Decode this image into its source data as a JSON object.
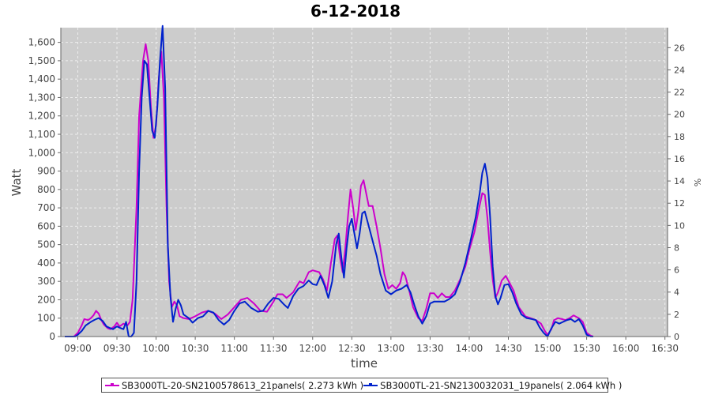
{
  "chart_data": {
    "type": "line",
    "title": "6-12-2018",
    "xlabel": "time",
    "ylabel": "Watt",
    "ylabel_right": "%",
    "grid": true,
    "legend_position": "bottom",
    "x_unit": "clock time (HH:MM)",
    "xlim": [
      "08:47",
      "16:32"
    ],
    "ylim": [
      0,
      1680
    ],
    "ylim_right": [
      0,
      27.8
    ],
    "x_ticks": [
      "09:00",
      "09:30",
      "10:00",
      "10:30",
      "11:00",
      "11:30",
      "12:00",
      "12:30",
      "13:00",
      "13:30",
      "14:00",
      "14:30",
      "15:00",
      "15:30",
      "16:00",
      "16:30"
    ],
    "y_ticks": [
      "0",
      "100",
      "200",
      "300",
      "400",
      "500",
      "600",
      "700",
      "800",
      "900",
      "1,000",
      "1,100",
      "1,200",
      "1,300",
      "1,400",
      "1,500",
      "1,600"
    ],
    "y_ticks_right": [
      "0",
      "2",
      "4",
      "6",
      "8",
      "10",
      "12",
      "14",
      "16",
      "18",
      "20",
      "22",
      "24",
      "26"
    ],
    "colors": {
      "plot_background": "#cccccc",
      "grid": "#eeeeee"
    },
    "series": [
      {
        "name": "SB3000TL-20-SN2100578613_21panels( 2.273 kWh )",
        "color": "#cc00cc",
        "points": [
          [
            "08:50",
            0
          ],
          [
            "08:57",
            0
          ],
          [
            "09:00",
            20
          ],
          [
            "09:03",
            60
          ],
          [
            "09:05",
            95
          ],
          [
            "09:08",
            90
          ],
          [
            "09:10",
            100
          ],
          [
            "09:12",
            115
          ],
          [
            "09:14",
            140
          ],
          [
            "09:16",
            125
          ],
          [
            "09:18",
            90
          ],
          [
            "09:20",
            65
          ],
          [
            "09:23",
            45
          ],
          [
            "09:25",
            40
          ],
          [
            "09:28",
            55
          ],
          [
            "09:30",
            75
          ],
          [
            "09:32",
            55
          ],
          [
            "09:35",
            70
          ],
          [
            "09:38",
            60
          ],
          [
            "09:40",
            80
          ],
          [
            "09:42",
            200
          ],
          [
            "09:45",
            700
          ],
          [
            "09:47",
            1200
          ],
          [
            "09:50",
            1500
          ],
          [
            "09:52",
            1590
          ],
          [
            "09:54",
            1500
          ],
          [
            "09:56",
            1250
          ],
          [
            "09:58",
            1080
          ],
          [
            "10:00",
            1150
          ],
          [
            "10:02",
            1400
          ],
          [
            "10:04",
            1550
          ],
          [
            "10:06",
            1300
          ],
          [
            "10:08",
            700
          ],
          [
            "10:10",
            300
          ],
          [
            "10:12",
            160
          ],
          [
            "10:14",
            190
          ],
          [
            "10:16",
            170
          ],
          [
            "10:18",
            110
          ],
          [
            "10:21",
            100
          ],
          [
            "10:25",
            95
          ],
          [
            "10:30",
            110
          ],
          [
            "10:35",
            130
          ],
          [
            "10:40",
            140
          ],
          [
            "10:45",
            125
          ],
          [
            "10:50",
            95
          ],
          [
            "10:55",
            120
          ],
          [
            "11:00",
            160
          ],
          [
            "11:05",
            200
          ],
          [
            "11:10",
            210
          ],
          [
            "11:15",
            180
          ],
          [
            "11:20",
            140
          ],
          [
            "11:25",
            135
          ],
          [
            "11:30",
            190
          ],
          [
            "11:33",
            230
          ],
          [
            "11:37",
            230
          ],
          [
            "11:40",
            210
          ],
          [
            "11:45",
            240
          ],
          [
            "11:50",
            300
          ],
          [
            "11:53",
            290
          ],
          [
            "11:57",
            350
          ],
          [
            "12:00",
            360
          ],
          [
            "12:05",
            350
          ],
          [
            "12:08",
            310
          ],
          [
            "12:11",
            250
          ],
          [
            "12:14",
            400
          ],
          [
            "12:17",
            530
          ],
          [
            "12:19",
            550
          ],
          [
            "12:21",
            430
          ],
          [
            "12:23",
            350
          ],
          [
            "12:25",
            480
          ],
          [
            "12:27",
            650
          ],
          [
            "12:29",
            800
          ],
          [
            "12:31",
            700
          ],
          [
            "12:33",
            580
          ],
          [
            "12:35",
            680
          ],
          [
            "12:37",
            820
          ],
          [
            "12:39",
            850
          ],
          [
            "12:41",
            780
          ],
          [
            "12:43",
            710
          ],
          [
            "12:46",
            710
          ],
          [
            "12:49",
            600
          ],
          [
            "12:52",
            480
          ],
          [
            "12:55",
            340
          ],
          [
            "12:58",
            260
          ],
          [
            "13:01",
            280
          ],
          [
            "13:04",
            260
          ],
          [
            "13:07",
            290
          ],
          [
            "13:09",
            350
          ],
          [
            "13:11",
            330
          ],
          [
            "13:14",
            250
          ],
          [
            "13:17",
            160
          ],
          [
            "13:21",
            100
          ],
          [
            "13:24",
            85
          ],
          [
            "13:27",
            150
          ],
          [
            "13:30",
            235
          ],
          [
            "13:33",
            235
          ],
          [
            "13:36",
            210
          ],
          [
            "13:39",
            235
          ],
          [
            "13:42",
            215
          ],
          [
            "13:45",
            215
          ],
          [
            "13:49",
            250
          ],
          [
            "13:53",
            310
          ],
          [
            "13:57",
            380
          ],
          [
            "14:00",
            470
          ],
          [
            "14:04",
            570
          ],
          [
            "14:07",
            680
          ],
          [
            "14:10",
            780
          ],
          [
            "14:12",
            770
          ],
          [
            "14:14",
            640
          ],
          [
            "14:16",
            460
          ],
          [
            "14:18",
            310
          ],
          [
            "14:20",
            210
          ],
          [
            "14:22",
            240
          ],
          [
            "14:25",
            305
          ],
          [
            "14:28",
            330
          ],
          [
            "14:31",
            290
          ],
          [
            "14:34",
            250
          ],
          [
            "14:38",
            160
          ],
          [
            "14:43",
            110
          ],
          [
            "14:47",
            100
          ],
          [
            "14:51",
            90
          ],
          [
            "14:55",
            70
          ],
          [
            "14:58",
            30
          ],
          [
            "15:00",
            10
          ],
          [
            "15:03",
            40
          ],
          [
            "15:05",
            90
          ],
          [
            "15:08",
            100
          ],
          [
            "15:11",
            95
          ],
          [
            "15:14",
            90
          ],
          [
            "15:17",
            100
          ],
          [
            "15:20",
            115
          ],
          [
            "15:24",
            100
          ],
          [
            "15:27",
            80
          ],
          [
            "15:30",
            20
          ],
          [
            "15:33",
            5
          ],
          [
            "15:35",
            0
          ]
        ]
      },
      {
        "name": "SB3000TL-21-SN2130032031_19panels( 2.064 kWh )",
        "color": "#0022cc",
        "points": [
          [
            "08:50",
            0
          ],
          [
            "08:58",
            0
          ],
          [
            "09:00",
            10
          ],
          [
            "09:03",
            30
          ],
          [
            "09:06",
            60
          ],
          [
            "09:10",
            80
          ],
          [
            "09:14",
            95
          ],
          [
            "09:16",
            100
          ],
          [
            "09:19",
            85
          ],
          [
            "09:22",
            55
          ],
          [
            "09:25",
            45
          ],
          [
            "09:27",
            40
          ],
          [
            "09:30",
            55
          ],
          [
            "09:33",
            45
          ],
          [
            "09:35",
            40
          ],
          [
            "09:37",
            80
          ],
          [
            "09:39",
            0
          ],
          [
            "09:41",
            0
          ],
          [
            "09:43",
            20
          ],
          [
            "09:45",
            300
          ],
          [
            "09:47",
            900
          ],
          [
            "09:49",
            1300
          ],
          [
            "09:51",
            1500
          ],
          [
            "09:53",
            1480
          ],
          [
            "09:55",
            1300
          ],
          [
            "09:57",
            1120
          ],
          [
            "09:59",
            1080
          ],
          [
            "10:01",
            1250
          ],
          [
            "10:03",
            1500
          ],
          [
            "10:05",
            1690
          ],
          [
            "10:07",
            1350
          ],
          [
            "10:09",
            500
          ],
          [
            "10:11",
            220
          ],
          [
            "10:13",
            80
          ],
          [
            "10:15",
            150
          ],
          [
            "10:17",
            200
          ],
          [
            "10:19",
            170
          ],
          [
            "10:21",
            120
          ],
          [
            "10:25",
            100
          ],
          [
            "10:28",
            75
          ],
          [
            "10:32",
            100
          ],
          [
            "10:36",
            110
          ],
          [
            "10:40",
            140
          ],
          [
            "10:44",
            130
          ],
          [
            "10:48",
            90
          ],
          [
            "10:52",
            65
          ],
          [
            "10:56",
            90
          ],
          [
            "11:00",
            140
          ],
          [
            "11:04",
            180
          ],
          [
            "11:08",
            190
          ],
          [
            "11:13",
            155
          ],
          [
            "11:18",
            135
          ],
          [
            "11:22",
            140
          ],
          [
            "11:26",
            180
          ],
          [
            "11:30",
            210
          ],
          [
            "11:34",
            205
          ],
          [
            "11:38",
            175
          ],
          [
            "11:41",
            155
          ],
          [
            "11:45",
            220
          ],
          [
            "11:49",
            260
          ],
          [
            "11:53",
            275
          ],
          [
            "11:57",
            305
          ],
          [
            "12:00",
            285
          ],
          [
            "12:03",
            280
          ],
          [
            "12:06",
            330
          ],
          [
            "12:09",
            280
          ],
          [
            "12:12",
            210
          ],
          [
            "12:15",
            300
          ],
          [
            "12:18",
            500
          ],
          [
            "12:20",
            560
          ],
          [
            "12:22",
            430
          ],
          [
            "12:24",
            320
          ],
          [
            "12:26",
            480
          ],
          [
            "12:28",
            600
          ],
          [
            "12:30",
            640
          ],
          [
            "12:32",
            560
          ],
          [
            "12:34",
            480
          ],
          [
            "12:36",
            560
          ],
          [
            "12:38",
            670
          ],
          [
            "12:40",
            680
          ],
          [
            "12:43",
            600
          ],
          [
            "12:46",
            520
          ],
          [
            "12:49",
            440
          ],
          [
            "12:52",
            340
          ],
          [
            "12:56",
            250
          ],
          [
            "13:00",
            230
          ],
          [
            "13:04",
            250
          ],
          [
            "13:08",
            260
          ],
          [
            "13:12",
            280
          ],
          [
            "13:15",
            240
          ],
          [
            "13:18",
            170
          ],
          [
            "13:21",
            110
          ],
          [
            "13:24",
            70
          ],
          [
            "13:27",
            110
          ],
          [
            "13:30",
            180
          ],
          [
            "13:33",
            190
          ],
          [
            "13:37",
            190
          ],
          [
            "13:41",
            190
          ],
          [
            "13:45",
            205
          ],
          [
            "13:49",
            230
          ],
          [
            "13:53",
            300
          ],
          [
            "13:57",
            400
          ],
          [
            "14:01",
            520
          ],
          [
            "14:05",
            650
          ],
          [
            "14:08",
            780
          ],
          [
            "14:10",
            890
          ],
          [
            "14:12",
            940
          ],
          [
            "14:14",
            860
          ],
          [
            "14:16",
            650
          ],
          [
            "14:18",
            380
          ],
          [
            "14:20",
            220
          ],
          [
            "14:22",
            175
          ],
          [
            "14:24",
            210
          ],
          [
            "14:27",
            280
          ],
          [
            "14:30",
            285
          ],
          [
            "14:33",
            240
          ],
          [
            "14:36",
            180
          ],
          [
            "14:40",
            120
          ],
          [
            "14:44",
            100
          ],
          [
            "14:48",
            95
          ],
          [
            "14:51",
            90
          ],
          [
            "14:54",
            50
          ],
          [
            "14:57",
            20
          ],
          [
            "15:00",
            0
          ],
          [
            "15:03",
            45
          ],
          [
            "15:06",
            80
          ],
          [
            "15:09",
            70
          ],
          [
            "15:12",
            80
          ],
          [
            "15:15",
            90
          ],
          [
            "15:18",
            95
          ],
          [
            "15:21",
            80
          ],
          [
            "15:24",
            95
          ],
          [
            "15:27",
            60
          ],
          [
            "15:30",
            10
          ],
          [
            "15:33",
            0
          ],
          [
            "15:35",
            0
          ]
        ]
      }
    ]
  }
}
